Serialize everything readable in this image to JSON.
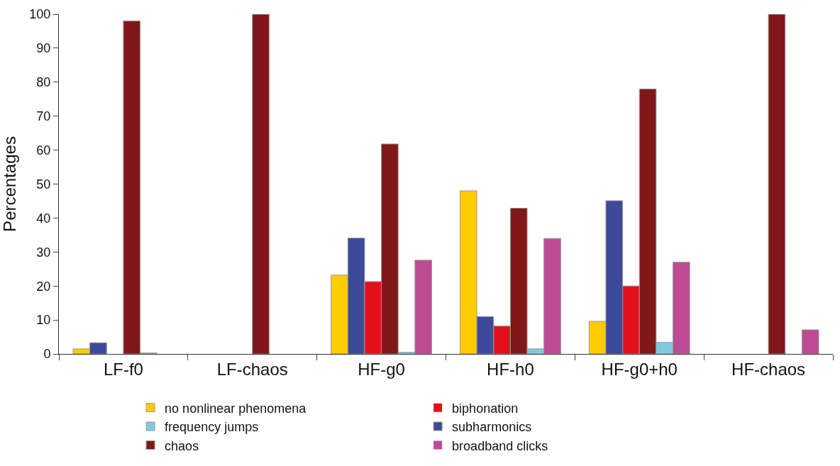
{
  "chart_data": {
    "type": "bar",
    "ylabel": "Percentages",
    "categories": [
      "LF-f0",
      "LF-chaos",
      "HF-g0",
      "HF-h0",
      "HF-g0+h0",
      "HF-chaos"
    ],
    "series": [
      {
        "name": "no nonlinear phenomena",
        "color": "#ffcc00",
        "values": [
          1.5,
          0,
          23.2,
          48,
          9.6,
          0
        ]
      },
      {
        "name": "subharmonics",
        "color": "#3c4a9a",
        "values": [
          3.3,
          0,
          34.1,
          11,
          45.1,
          0
        ]
      },
      {
        "name": "biphonation",
        "color": "#e3101c",
        "values": [
          0,
          0,
          21.3,
          8.2,
          20,
          0
        ]
      },
      {
        "name": "chaos",
        "color": "#80181a",
        "values": [
          98,
          100,
          61.8,
          42.9,
          78,
          100
        ]
      },
      {
        "name": "frequency jumps",
        "color": "#7ecbdf",
        "values": [
          0.3,
          0,
          0.5,
          1.5,
          3.4,
          0
        ]
      },
      {
        "name": "broadband clicks",
        "color": "#bd4b94",
        "values": [
          0,
          0,
          27.6,
          34,
          27,
          7.1
        ]
      }
    ],
    "ylim": [
      0,
      100
    ],
    "yticks": [
      0,
      10,
      20,
      30,
      40,
      50,
      60,
      70,
      80,
      90,
      100
    ],
    "legend": "bottom"
  }
}
